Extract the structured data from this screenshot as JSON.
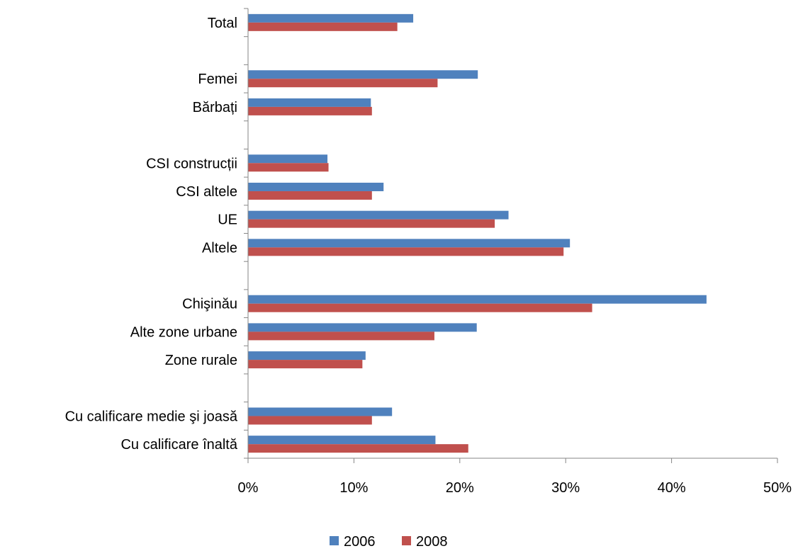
{
  "chart_data": {
    "type": "bar",
    "orientation": "horizontal",
    "categories": [
      "Total",
      "",
      "Femei",
      "Bărbați",
      "",
      "CSI construcții",
      "CSI altele",
      "UE",
      "Altele",
      "",
      "Chişinău",
      "Alte zone urbane",
      "Zone rurale",
      "",
      "Cu calificare medie şi joasă",
      "Cu calificare înaltă"
    ],
    "series": [
      {
        "name": "2006",
        "color": "#4F81BD",
        "values": [
          15.6,
          null,
          21.7,
          11.6,
          null,
          7.5,
          12.8,
          24.6,
          30.4,
          null,
          43.3,
          21.6,
          11.1,
          null,
          13.6,
          17.7
        ]
      },
      {
        "name": "2008",
        "color": "#C0504D",
        "values": [
          14.1,
          null,
          17.9,
          11.7,
          null,
          7.6,
          11.7,
          23.3,
          29.8,
          null,
          32.5,
          17.6,
          10.8,
          null,
          11.7,
          20.8
        ]
      }
    ],
    "xlim": [
      0,
      50
    ],
    "ticks": [
      "0%",
      "10%",
      "20%",
      "30%",
      "40%",
      "50%"
    ],
    "legend_position": "bottom",
    "grid": false,
    "title": "",
    "xlabel": "",
    "ylabel": ""
  }
}
